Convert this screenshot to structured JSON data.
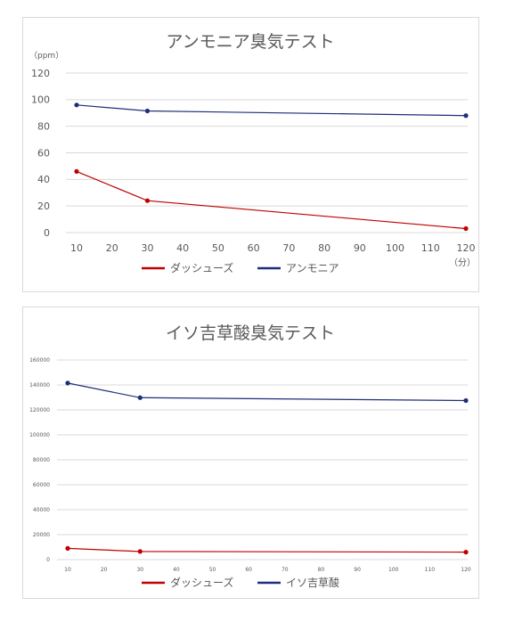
{
  "chart_data": [
    {
      "type": "line",
      "title": "アンモニア臭気テスト",
      "ylabel": "（ppm）",
      "xlabel": "（分）",
      "x": [
        10,
        30,
        120
      ],
      "x_ticks": [
        "10",
        "20",
        "30",
        "40",
        "50",
        "60",
        "70",
        "80",
        "90",
        "100",
        "110",
        "120"
      ],
      "y_ticks": [
        "0",
        "20",
        "40",
        "60",
        "80",
        "100",
        "120"
      ],
      "xlim": [
        10,
        120
      ],
      "ylim": [
        0,
        120
      ],
      "grid": "horizontal",
      "legend": "bottom",
      "series": [
        {
          "name": "ダッシューズ",
          "color": "#c00000",
          "values": [
            46,
            24,
            3
          ]
        },
        {
          "name": "アンモニア",
          "color": "#1f2d7a",
          "values": [
            96,
            91.5,
            88
          ]
        }
      ]
    },
    {
      "type": "line",
      "title": "イソ吉草酸臭気テスト",
      "ylabel": "",
      "xlabel": "",
      "x": [
        10,
        30,
        120
      ],
      "x_ticks": [
        "10",
        "20",
        "30",
        "40",
        "50",
        "60",
        "70",
        "80",
        "90",
        "100",
        "110",
        "120"
      ],
      "y_ticks": [
        "0",
        "20000",
        "40000",
        "60000",
        "80000",
        "100000",
        "120000",
        "140000",
        "160000"
      ],
      "xlim": [
        10,
        120
      ],
      "ylim": [
        0,
        160000
      ],
      "grid": "horizontal",
      "legend": "bottom",
      "series": [
        {
          "name": "ダッシューズ",
          "color": "#c00000",
          "values": [
            9000,
            6500,
            6000
          ]
        },
        {
          "name": "イソ吉草酸",
          "color": "#1f2d7a",
          "values": [
            141500,
            129800,
            127500
          ]
        }
      ]
    }
  ]
}
